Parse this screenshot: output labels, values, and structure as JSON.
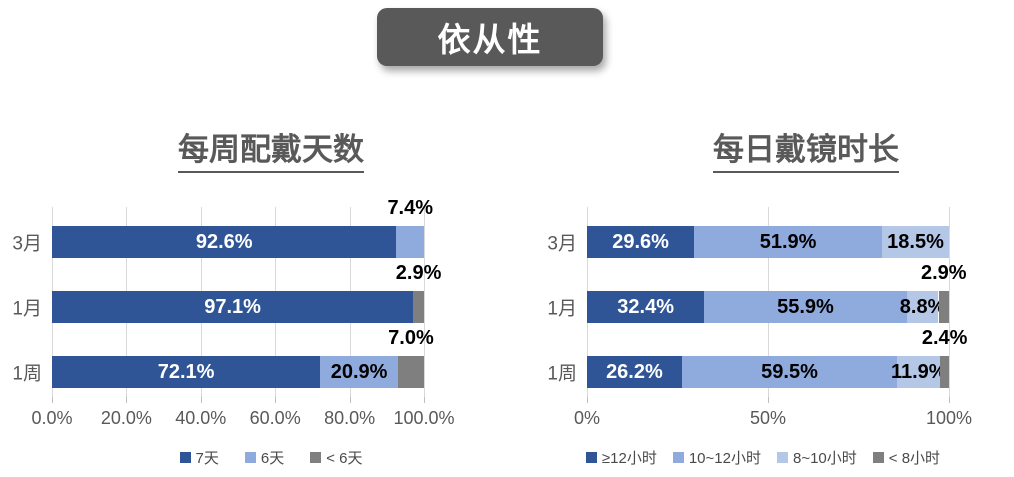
{
  "banner": {
    "title": "依从性"
  },
  "colors": {
    "dark_blue": "#2F5597",
    "medium_blue": "#8FAADC",
    "light_blue": "#B4C7E7",
    "gray": "#7F7F7F",
    "banner_bg": "#595959",
    "heading_text": "#595959",
    "axis_text": "#595959",
    "gridline": "#D9D9D9",
    "label_white": "#FFFFFF",
    "label_black": "#000000"
  },
  "chart_data": [
    {
      "type": "bar",
      "orientation": "horizontal",
      "stacked": true,
      "title": "每周配戴天数",
      "categories": [
        "3月",
        "1月",
        "1周"
      ],
      "series": [
        {
          "name": "7天",
          "color": "dark_blue",
          "values": [
            92.6,
            97.1,
            72.1
          ]
        },
        {
          "name": "6天",
          "color": "medium_blue",
          "values": [
            7.4,
            0,
            20.9
          ]
        },
        {
          "name": "< 6天",
          "color": "gray",
          "values": [
            0,
            2.9,
            7.0
          ]
        }
      ],
      "xlim": [
        0,
        100
      ],
      "x_ticks": [
        {
          "pos": 0,
          "label": "0.0%"
        },
        {
          "pos": 20,
          "label": "20.0%"
        },
        {
          "pos": 40,
          "label": "40.0%"
        },
        {
          "pos": 60,
          "label": "60.0%"
        },
        {
          "pos": 80,
          "label": "80.0%"
        },
        {
          "pos": 100,
          "label": "100.0%"
        }
      ],
      "grid": true,
      "legend_position": "bottom",
      "xlabel": "",
      "ylabel": ""
    },
    {
      "type": "bar",
      "orientation": "horizontal",
      "stacked": true,
      "title": "每日戴镜时长",
      "categories": [
        "3月",
        "1月",
        "1周"
      ],
      "series": [
        {
          "name": "≥12小时",
          "color": "dark_blue",
          "values": [
            29.6,
            32.4,
            26.2
          ]
        },
        {
          "name": "10~12小时",
          "color": "medium_blue",
          "values": [
            51.9,
            55.9,
            59.5
          ]
        },
        {
          "name": "8~10小时",
          "color": "light_blue",
          "values": [
            18.5,
            8.8,
            11.9
          ]
        },
        {
          "name": "< 8小时",
          "color": "gray",
          "values": [
            0,
            2.9,
            2.4
          ]
        }
      ],
      "xlim": [
        0,
        100
      ],
      "x_ticks": [
        {
          "pos": 0,
          "label": "0%"
        },
        {
          "pos": 50,
          "label": "50%"
        },
        {
          "pos": 100,
          "label": "100%"
        }
      ],
      "grid": true,
      "legend_position": "bottom",
      "xlabel": "",
      "ylabel": ""
    }
  ]
}
